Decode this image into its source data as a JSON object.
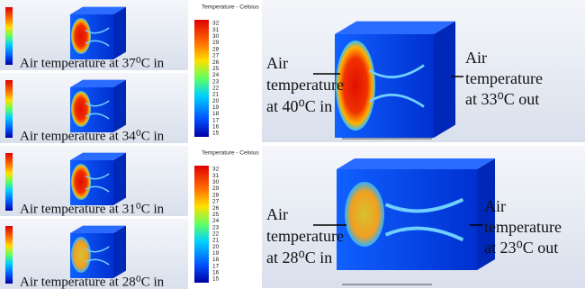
{
  "small_panels": [
    {
      "caption": "Air temperature at 37⁰C in"
    },
    {
      "caption": "Air temperature at 34⁰C in"
    },
    {
      "caption": "Air temperature at 31⁰C in"
    },
    {
      "caption": "Air temperature at 28⁰C in"
    }
  ],
  "colorbars": [
    {
      "title": "Temperature - Celsius",
      "ticks": [
        "32",
        "31",
        "30",
        "29",
        "28",
        "27",
        "26",
        "25",
        "24",
        "23",
        "22",
        "21",
        "20",
        "19",
        "18",
        "17",
        "16",
        "15"
      ]
    },
    {
      "title": "Temperature - Celsius",
      "ticks": [
        "32",
        "31",
        "30",
        "29",
        "28",
        "27",
        "26",
        "25",
        "24",
        "23",
        "22",
        "21",
        "20",
        "19",
        "18",
        "17",
        "16",
        "15"
      ]
    }
  ],
  "large_panels": [
    {
      "inlet": [
        "Air",
        "temperature",
        "at 40⁰C in"
      ],
      "outlet": [
        "Air",
        "temperature",
        "at 33⁰C out"
      ]
    },
    {
      "inlet": [
        "Air",
        "temperature",
        "at 28⁰C in"
      ],
      "outlet": [
        "Air",
        "temperature",
        "at 23⁰C out"
      ]
    }
  ]
}
